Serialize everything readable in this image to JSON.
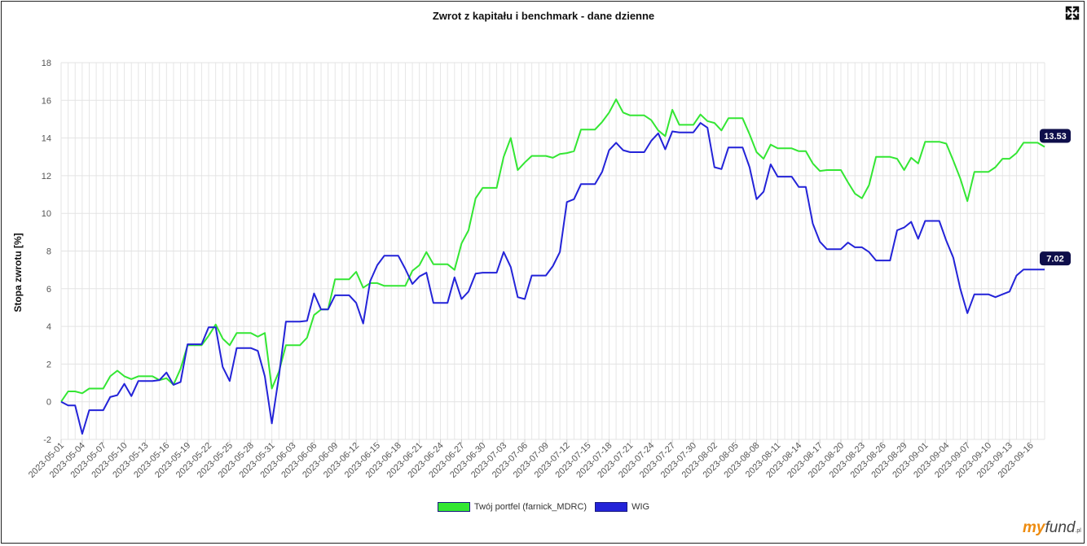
{
  "chart_data": {
    "type": "line",
    "title": "Zwrot z kapitału i benchmark - dane dzienne",
    "xlabel": "",
    "ylabel": "Stopa zwrotu [%]",
    "ylim": [
      -2,
      18
    ],
    "y_ticks": [
      -2,
      0,
      2,
      4,
      6,
      8,
      10,
      12,
      14,
      16,
      18
    ],
    "grid": true,
    "legend": "bottom-center",
    "x_tick_labels": [
      "2023-05-01",
      "2023-05-04",
      "2023-05-07",
      "2023-05-10",
      "2023-05-13",
      "2023-05-16",
      "2023-05-19",
      "2023-05-22",
      "2023-05-25",
      "2023-05-28",
      "2023-05-31",
      "2023-06-03",
      "2023-06-06",
      "2023-06-09",
      "2023-06-12",
      "2023-06-15",
      "2023-06-18",
      "2023-06-21",
      "2023-06-24",
      "2023-06-27",
      "2023-06-30",
      "2023-07-03",
      "2023-07-06",
      "2023-07-09",
      "2023-07-12",
      "2023-07-15",
      "2023-07-18",
      "2023-07-21",
      "2023-07-24",
      "2023-07-27",
      "2023-07-30",
      "2023-08-02",
      "2023-08-05",
      "2023-08-08",
      "2023-08-11",
      "2023-08-14",
      "2023-08-17",
      "2023-08-20",
      "2023-08-23",
      "2023-08-26",
      "2023-08-29",
      "2023-09-01",
      "2023-09-04",
      "2023-09-07",
      "2023-09-10",
      "2023-09-13",
      "2023-09-16"
    ],
    "x": [
      "2023-05-01",
      "2023-05-02",
      "2023-05-03",
      "2023-05-04",
      "2023-05-05",
      "2023-05-06",
      "2023-05-07",
      "2023-05-08",
      "2023-05-09",
      "2023-05-10",
      "2023-05-11",
      "2023-05-12",
      "2023-05-13",
      "2023-05-14",
      "2023-05-15",
      "2023-05-16",
      "2023-05-17",
      "2023-05-18",
      "2023-05-19",
      "2023-05-20",
      "2023-05-21",
      "2023-05-22",
      "2023-05-23",
      "2023-05-24",
      "2023-05-25",
      "2023-05-26",
      "2023-05-27",
      "2023-05-28",
      "2023-05-29",
      "2023-05-30",
      "2023-05-31",
      "2023-06-01",
      "2023-06-02",
      "2023-06-03",
      "2023-06-04",
      "2023-06-05",
      "2023-06-06",
      "2023-06-07",
      "2023-06-08",
      "2023-06-09",
      "2023-06-10",
      "2023-06-11",
      "2023-06-12",
      "2023-06-13",
      "2023-06-14",
      "2023-06-15",
      "2023-06-16",
      "2023-06-17",
      "2023-06-18",
      "2023-06-19",
      "2023-06-20",
      "2023-06-21",
      "2023-06-22",
      "2023-06-23",
      "2023-06-24",
      "2023-06-25",
      "2023-06-26",
      "2023-06-27",
      "2023-06-28",
      "2023-06-29",
      "2023-06-30",
      "2023-07-01",
      "2023-07-02",
      "2023-07-03",
      "2023-07-04",
      "2023-07-05",
      "2023-07-06",
      "2023-07-07",
      "2023-07-08",
      "2023-07-09",
      "2023-07-10",
      "2023-07-11",
      "2023-07-12",
      "2023-07-13",
      "2023-07-14",
      "2023-07-15",
      "2023-07-16",
      "2023-07-17",
      "2023-07-18",
      "2023-07-19",
      "2023-07-20",
      "2023-07-21",
      "2023-07-22",
      "2023-07-23",
      "2023-07-24",
      "2023-07-25",
      "2023-07-26",
      "2023-07-27",
      "2023-07-28",
      "2023-07-29",
      "2023-07-30",
      "2023-07-31",
      "2023-08-01",
      "2023-08-02",
      "2023-08-03",
      "2023-08-04",
      "2023-08-05",
      "2023-08-06",
      "2023-08-07",
      "2023-08-08",
      "2023-08-09",
      "2023-08-10",
      "2023-08-11",
      "2023-08-12",
      "2023-08-13",
      "2023-08-14",
      "2023-08-15",
      "2023-08-16",
      "2023-08-17",
      "2023-08-18",
      "2023-08-19",
      "2023-08-20",
      "2023-08-21",
      "2023-08-22",
      "2023-08-23",
      "2023-08-24",
      "2023-08-25",
      "2023-08-26",
      "2023-08-27",
      "2023-08-28",
      "2023-08-29",
      "2023-08-30",
      "2023-08-31",
      "2023-09-01",
      "2023-09-02",
      "2023-09-03",
      "2023-09-04",
      "2023-09-05",
      "2023-09-06",
      "2023-09-07",
      "2023-09-08",
      "2023-09-09",
      "2023-09-10",
      "2023-09-11",
      "2023-09-12",
      "2023-09-13",
      "2023-09-14",
      "2023-09-15",
      "2023-09-16",
      "2023-09-17",
      "2023-09-18"
    ],
    "series": [
      {
        "name": "Twój portfel (farnick_MDRC)",
        "color": "#33e633",
        "last_label": "13.53",
        "values": [
          0.0,
          0.55,
          0.55,
          0.45,
          0.7,
          0.7,
          0.7,
          1.35,
          1.65,
          1.35,
          1.2,
          1.35,
          1.35,
          1.35,
          1.15,
          1.25,
          0.9,
          1.75,
          3.0,
          3.0,
          3.0,
          3.5,
          4.1,
          3.35,
          3.0,
          3.65,
          3.65,
          3.65,
          3.45,
          3.65,
          0.7,
          1.6,
          3.0,
          3.0,
          3.0,
          3.4,
          4.6,
          4.9,
          4.9,
          6.5,
          6.5,
          6.5,
          6.9,
          6.05,
          6.3,
          6.3,
          6.15,
          6.15,
          6.15,
          6.15,
          6.95,
          7.25,
          7.95,
          7.3,
          7.3,
          7.3,
          7.0,
          8.4,
          9.1,
          10.8,
          11.35,
          11.35,
          11.35,
          13.0,
          14.0,
          12.3,
          12.7,
          13.05,
          13.05,
          13.05,
          12.95,
          13.15,
          13.2,
          13.3,
          14.45,
          14.45,
          14.45,
          14.85,
          15.35,
          16.05,
          15.35,
          15.2,
          15.2,
          15.2,
          14.95,
          14.4,
          14.1,
          15.5,
          14.7,
          14.7,
          14.7,
          15.25,
          14.9,
          14.8,
          14.4,
          15.05,
          15.05,
          15.05,
          14.2,
          13.25,
          12.9,
          13.65,
          13.45,
          13.45,
          13.45,
          13.3,
          13.3,
          12.65,
          12.25,
          12.3,
          12.3,
          12.3,
          11.65,
          11.05,
          10.8,
          11.5,
          13.0,
          13.0,
          13.0,
          12.9,
          12.3,
          12.95,
          12.65,
          13.8,
          13.8,
          13.8,
          13.7,
          12.8,
          11.85,
          10.65,
          12.2,
          12.2,
          12.2,
          12.45,
          12.9,
          12.9,
          13.2,
          13.75,
          13.75,
          13.75,
          13.53
        ]
      },
      {
        "name": "WIG",
        "color": "#2323d8",
        "last_label": "7.02",
        "values": [
          0.0,
          -0.2,
          -0.2,
          -1.7,
          -0.45,
          -0.45,
          -0.45,
          0.25,
          0.35,
          0.95,
          0.3,
          1.1,
          1.1,
          1.1,
          1.15,
          1.55,
          0.9,
          1.05,
          3.05,
          3.05,
          3.05,
          3.95,
          3.95,
          1.85,
          1.1,
          2.85,
          2.85,
          2.85,
          2.7,
          1.35,
          -1.15,
          1.35,
          4.25,
          4.25,
          4.25,
          4.3,
          5.75,
          4.9,
          4.9,
          5.65,
          5.65,
          5.65,
          5.25,
          4.15,
          6.4,
          7.25,
          7.75,
          7.75,
          7.75,
          7.05,
          6.25,
          6.65,
          6.85,
          5.25,
          5.25,
          5.25,
          6.6,
          5.45,
          5.85,
          6.8,
          6.85,
          6.85,
          6.85,
          7.95,
          7.15,
          5.55,
          5.45,
          6.7,
          6.7,
          6.7,
          7.2,
          7.95,
          10.6,
          10.75,
          11.55,
          11.55,
          11.55,
          12.2,
          13.35,
          13.75,
          13.35,
          13.25,
          13.25,
          13.25,
          13.85,
          14.25,
          13.4,
          14.35,
          14.3,
          14.3,
          14.3,
          14.8,
          14.55,
          12.45,
          12.35,
          13.5,
          13.5,
          13.5,
          12.45,
          10.75,
          11.15,
          12.6,
          11.95,
          11.95,
          11.95,
          11.4,
          11.4,
          9.45,
          8.5,
          8.1,
          8.1,
          8.1,
          8.45,
          8.2,
          8.2,
          7.95,
          7.5,
          7.5,
          7.5,
          9.1,
          9.25,
          9.55,
          8.65,
          9.6,
          9.6,
          9.6,
          8.55,
          7.65,
          6.0,
          4.7,
          5.7,
          5.7,
          5.7,
          5.55,
          5.7,
          5.85,
          6.7,
          7.02,
          7.02,
          7.02,
          7.02
        ]
      }
    ]
  },
  "legend_items": [
    "Twój portfel (farnick_MDRC)",
    "WIG"
  ],
  "logo": {
    "prefix": "my",
    "main": "fund",
    "suffix": ".pl"
  },
  "icons": {
    "fullscreen": "fullscreen-icon"
  }
}
